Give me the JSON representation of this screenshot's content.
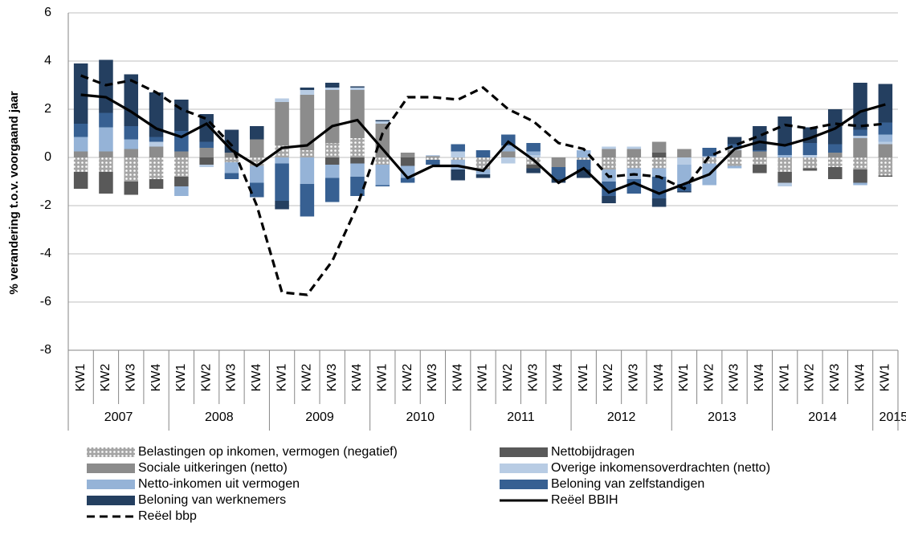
{
  "chart_data": {
    "type": "bar",
    "y_label": "% verandering t.o.v. voorgaand jaar",
    "categories": [
      "KW1",
      "KW2",
      "KW3",
      "KW4",
      "KW1",
      "KW2",
      "KW3",
      "KW4",
      "KW1",
      "KW2",
      "KW3",
      "KW4",
      "KW1",
      "KW2",
      "KW3",
      "KW4",
      "KW1",
      "KW2",
      "KW3",
      "KW4",
      "KW1",
      "KW2",
      "KW3",
      "KW4",
      "KW1",
      "KW2",
      "KW3",
      "KW4",
      "KW1",
      "KW2",
      "KW3",
      "KW4",
      "KW1"
    ],
    "years": [
      "2007",
      "2008",
      "2009",
      "2010",
      "2011",
      "2012",
      "2013",
      "2014",
      "2015"
    ],
    "ylim": [
      -8,
      6
    ],
    "yticks": [
      -8,
      -6,
      -4,
      -2,
      0,
      2,
      4,
      6
    ],
    "grid": true,
    "series": [
      {
        "name": "Belastingen op inkomen, vermogen (negatief)",
        "color": "#a6a6a6",
        "pattern": "dots",
        "values": [
          -0.6,
          -0.6,
          -1.0,
          -0.9,
          -0.8,
          0,
          -0.2,
          -0.35,
          0.5,
          0.3,
          0.6,
          0.8,
          -0.3,
          0,
          -0.1,
          -0.1,
          -0.5,
          0,
          -0.3,
          0,
          -0.1,
          -0.5,
          -0.45,
          -0.45,
          0,
          -0.25,
          -0.35,
          -0.3,
          -0.6,
          -0.45,
          -0.4,
          -0.5,
          -0.75
        ]
      },
      {
        "name": "Nettobijdragen",
        "color": "#595959",
        "values": [
          -0.7,
          -0.9,
          -0.55,
          -0.4,
          -0.4,
          -0.3,
          0,
          0,
          0,
          0,
          -0.3,
          -0.25,
          0,
          -0.35,
          0,
          0,
          0,
          0,
          -0.15,
          0,
          0,
          0,
          0,
          0.2,
          0,
          0,
          0,
          -0.35,
          -0.45,
          -0.1,
          -0.5,
          -0.55,
          -0.05
        ]
      },
      {
        "name": "Sociale uitkeringen (netto)",
        "color": "#8c8c8c",
        "values": [
          0.25,
          0.25,
          0.35,
          0.45,
          0.25,
          0.4,
          0.2,
          0.75,
          1.8,
          2.3,
          2.2,
          2.0,
          1.4,
          0.2,
          0.05,
          0,
          0,
          0.25,
          0,
          -0.4,
          0,
          0.35,
          0.35,
          0.45,
          0.35,
          0,
          0.3,
          0.25,
          0,
          0,
          0.2,
          0.8,
          0.55
        ]
      },
      {
        "name": "Overige inkomensoverdrachten (netto)",
        "color": "#b8cce4",
        "values": [
          0,
          0,
          0,
          0.2,
          0,
          -0.1,
          0,
          0,
          0.15,
          0.2,
          0.1,
          0.1,
          0.1,
          0,
          0.05,
          0.25,
          0,
          -0.25,
          0.1,
          0,
          0,
          0.1,
          0.1,
          0,
          -0.3,
          0.05,
          0.1,
          0,
          -0.15,
          0.1,
          0,
          0.1,
          0.1
        ]
      },
      {
        "name": "Netto-inkomen uit vermogen",
        "color": "#95b3d7",
        "values": [
          0.6,
          1.0,
          0.4,
          0,
          -0.4,
          0,
          -0.45,
          -0.7,
          -0.25,
          -1.1,
          -0.55,
          -0.55,
          -0.85,
          -0.5,
          0,
          -0.4,
          -0.2,
          0.25,
          0.15,
          0,
          0.3,
          -0.5,
          -0.45,
          -0.35,
          -0.8,
          -0.9,
          -0.1,
          0,
          0.1,
          0,
          0,
          -0.1,
          0.3
        ]
      },
      {
        "name": "Beloning van zelfstandigen",
        "color": "#376092",
        "values": [
          0.55,
          0.6,
          0.55,
          0.2,
          0.85,
          0.25,
          -0.25,
          -0.6,
          -1.55,
          -1.35,
          -1.0,
          -0.8,
          -0.05,
          -0.2,
          -0.2,
          0.3,
          0.3,
          0.45,
          0.35,
          -0.5,
          -0.4,
          -0.6,
          -0.6,
          -0.9,
          -0.3,
          0.35,
          0.15,
          0.05,
          0.4,
          0.5,
          0.35,
          0.25,
          0.5
        ]
      },
      {
        "name": "Beloning van werknemers",
        "color": "#243f60",
        "values": [
          2.5,
          2.2,
          2.15,
          1.85,
          1.3,
          1.15,
          0.95,
          0.55,
          -0.35,
          0.1,
          0.2,
          0.05,
          0.05,
          0,
          0,
          -0.45,
          -0.15,
          0,
          -0.2,
          -0.15,
          -0.35,
          -0.3,
          0,
          -0.35,
          -0.05,
          0,
          0.3,
          1.0,
          1.2,
          0.65,
          1.45,
          1.95,
          1.6
        ]
      },
      {
        "name": "Reëel BBIH",
        "type": "line",
        "color": "#000000",
        "values": [
          2.6,
          2.5,
          1.9,
          1.2,
          0.85,
          1.4,
          0.3,
          -0.35,
          0.4,
          0.5,
          1.3,
          1.55,
          0.35,
          -0.85,
          -0.35,
          -0.35,
          -0.55,
          0.65,
          -0.1,
          -1.05,
          -0.45,
          -1.45,
          -1.05,
          -1.5,
          -1.1,
          -0.7,
          0.35,
          0.65,
          0.5,
          0.8,
          1.2,
          1.9,
          2.2
        ]
      },
      {
        "name": "Reëel bbp",
        "type": "line",
        "dash": true,
        "color": "#000000",
        "values": [
          3.4,
          3.0,
          3.2,
          2.7,
          2.0,
          1.6,
          0.5,
          -2.0,
          -5.6,
          -5.7,
          -4.3,
          -2.0,
          1.0,
          2.5,
          2.5,
          2.4,
          2.9,
          2.0,
          1.5,
          0.6,
          0.35,
          -0.8,
          -0.7,
          -0.8,
          -1.3,
          0.05,
          0.5,
          0.9,
          1.35,
          1.2,
          1.4,
          1.3,
          1.4
        ]
      }
    ]
  }
}
